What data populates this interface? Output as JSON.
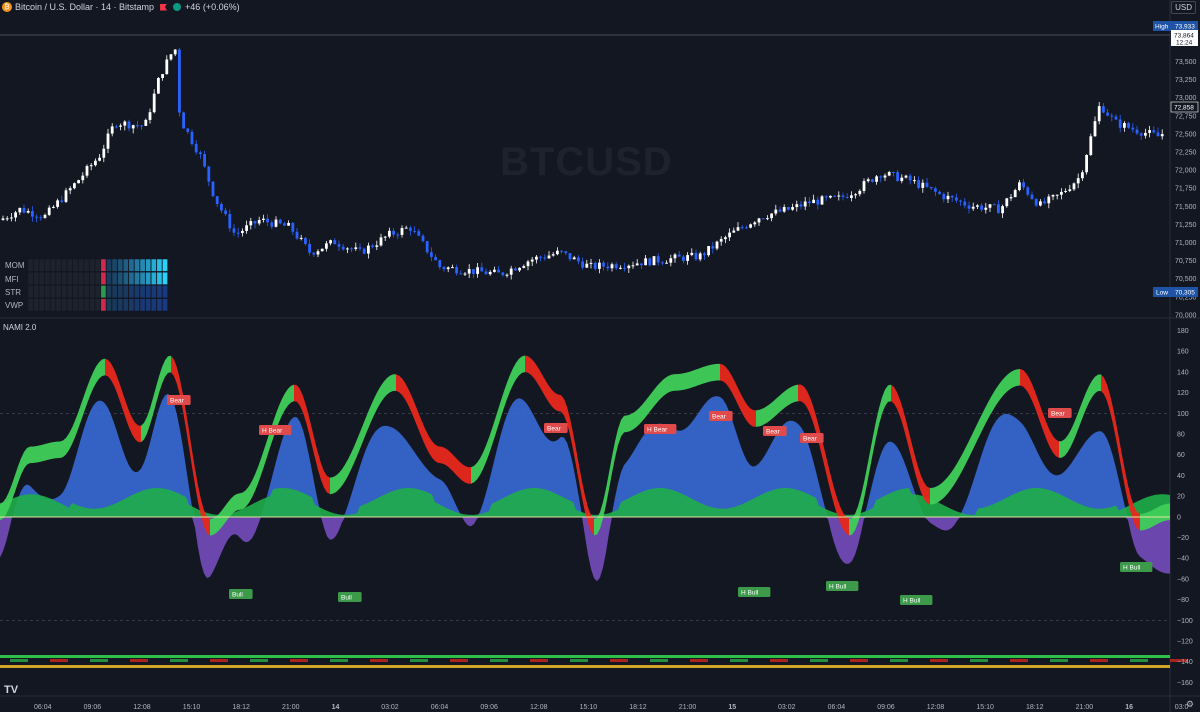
{
  "header": {
    "symbol_title": "Bitcoin / U.S. Dollar · 14 · Bitstamp",
    "change": "+46 (+0.06%)",
    "currency": "USD"
  },
  "watermark": "BTCUSD",
  "indicator_label": "NAMI 2.0",
  "heatmap_rows": [
    "MOM",
    "MFI",
    "STR",
    "VWP"
  ],
  "price_axis": {
    "labels": [
      "73,500",
      "73,250",
      "73,000",
      "72,750",
      "72,500",
      "72,250",
      "72,000",
      "71,750",
      "71,500",
      "71,250",
      "71,000",
      "70,750",
      "70,500",
      "70,250",
      "70,000"
    ],
    "high_label": "High",
    "high_value": "73,933",
    "current_value": "73,864",
    "current_time": "12:24",
    "last_value": "72,858",
    "low_label": "Low",
    "low_value": "70,305"
  },
  "osc_axis": {
    "labels": [
      "180",
      "160",
      "140",
      "120",
      "100",
      "80",
      "60",
      "40",
      "20",
      "0",
      "−20",
      "−40",
      "−60",
      "−80",
      "−100",
      "−120",
      "−140",
      "−160"
    ]
  },
  "time_axis": {
    "labels": [
      "06:04",
      "09:06",
      "12:08",
      "15:10",
      "18:12",
      "21:00",
      "14",
      "03:02",
      "06:04",
      "09:06",
      "12:08",
      "15:10",
      "18:12",
      "21:00",
      "15",
      "03:02",
      "06:04",
      "09:06",
      "12:08",
      "15:10",
      "18:12",
      "21:00",
      "16",
      "03:0"
    ]
  },
  "signals": {
    "bear": [
      "Bear",
      "H Bear",
      "Bear",
      "Bear",
      "H Bear",
      "Bear",
      "Bear",
      "Bear",
      "H Bear"
    ],
    "bull": [
      "Bull",
      "Bull",
      "H Bull",
      "H Bull",
      "H Bull",
      "H Bull"
    ]
  },
  "colors": {
    "bg": "#131722",
    "up": "#ffffff",
    "down": "#2962ff",
    "bear_tag": "#e04a4a",
    "bull_tag": "#3d9a4a",
    "green_wave": "#3fcf5a",
    "red_wave": "#e8281c",
    "blue_area": "#3b6fe0",
    "purple_area": "#7b4fc4"
  }
}
